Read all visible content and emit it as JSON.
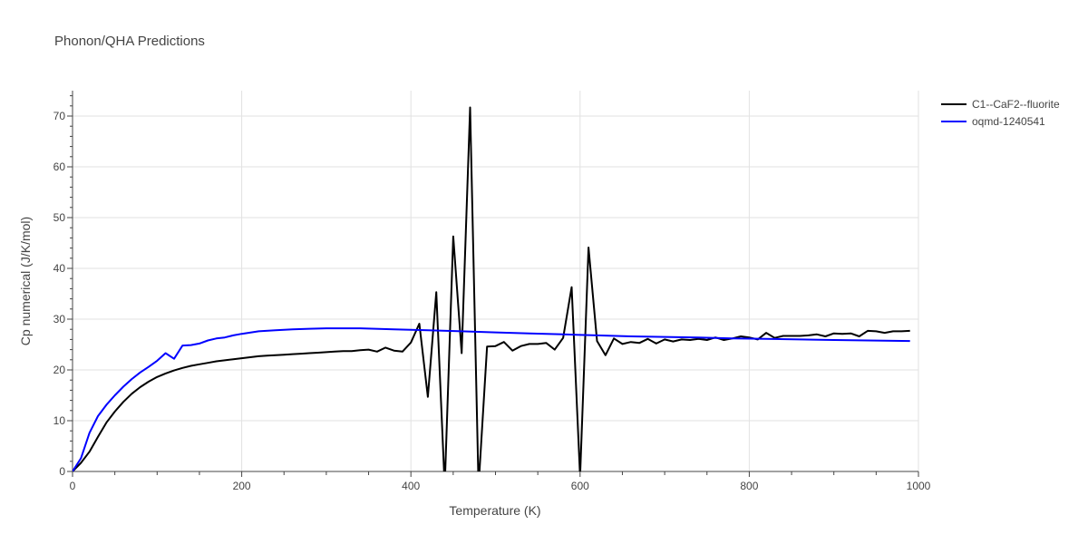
{
  "chart_data": {
    "type": "line",
    "title": "Phonon/QHA Predictions",
    "xlabel": "Temperature (K)",
    "ylabel": "Cp numerical (J/K/mol)",
    "xlim": [
      0,
      1000
    ],
    "ylim": [
      0,
      75
    ],
    "xticks": [
      0,
      200,
      400,
      600,
      800,
      1000
    ],
    "yticks": [
      0,
      10,
      20,
      30,
      40,
      50,
      60,
      70
    ],
    "grid": true,
    "legend_position": "top-right",
    "series": [
      {
        "name": "C1--CaF2--fluorite",
        "color": "#000000",
        "points": [
          [
            0,
            0
          ],
          [
            10,
            1.7
          ],
          [
            20,
            3.9
          ],
          [
            30,
            6.8
          ],
          [
            40,
            9.6
          ],
          [
            50,
            11.8
          ],
          [
            60,
            13.7
          ],
          [
            70,
            15.3
          ],
          [
            80,
            16.6
          ],
          [
            90,
            17.7
          ],
          [
            100,
            18.6
          ],
          [
            110,
            19.3
          ],
          [
            120,
            19.9
          ],
          [
            130,
            20.4
          ],
          [
            140,
            20.8
          ],
          [
            150,
            21.1
          ],
          [
            160,
            21.4
          ],
          [
            170,
            21.7
          ],
          [
            180,
            21.9
          ],
          [
            190,
            22.1
          ],
          [
            200,
            22.3
          ],
          [
            210,
            22.5
          ],
          [
            220,
            22.7
          ],
          [
            230,
            22.8
          ],
          [
            240,
            22.9
          ],
          [
            250,
            23.0
          ],
          [
            260,
            23.1
          ],
          [
            270,
            23.2
          ],
          [
            280,
            23.3
          ],
          [
            290,
            23.4
          ],
          [
            300,
            23.5
          ],
          [
            310,
            23.6
          ],
          [
            320,
            23.7
          ],
          [
            330,
            23.7
          ],
          [
            340,
            23.9
          ],
          [
            350,
            24.0
          ],
          [
            360,
            23.6
          ],
          [
            370,
            24.4
          ],
          [
            380,
            23.8
          ],
          [
            390,
            23.6
          ],
          [
            400,
            25.4
          ],
          [
            410,
            29.1
          ],
          [
            420,
            14.7
          ],
          [
            430,
            35.3
          ],
          [
            440,
            -3.0
          ],
          [
            450,
            46.3
          ],
          [
            460,
            23.3
          ],
          [
            470,
            71.7
          ],
          [
            480,
            -3.0
          ],
          [
            490,
            24.6
          ],
          [
            500,
            24.7
          ],
          [
            510,
            25.5
          ],
          [
            520,
            23.8
          ],
          [
            530,
            24.7
          ],
          [
            540,
            25.1
          ],
          [
            550,
            25.1
          ],
          [
            560,
            25.3
          ],
          [
            570,
            24.0
          ],
          [
            580,
            26.3
          ],
          [
            590,
            36.3
          ],
          [
            600,
            -1.0
          ],
          [
            610,
            44.1
          ],
          [
            620,
            25.7
          ],
          [
            630,
            22.9
          ],
          [
            640,
            26.2
          ],
          [
            650,
            25.1
          ],
          [
            660,
            25.5
          ],
          [
            670,
            25.3
          ],
          [
            680,
            26.1
          ],
          [
            690,
            25.2
          ],
          [
            700,
            26.0
          ],
          [
            710,
            25.6
          ],
          [
            720,
            26.0
          ],
          [
            730,
            25.9
          ],
          [
            740,
            26.1
          ],
          [
            750,
            25.9
          ],
          [
            760,
            26.4
          ],
          [
            770,
            25.9
          ],
          [
            780,
            26.2
          ],
          [
            790,
            26.6
          ],
          [
            800,
            26.4
          ],
          [
            810,
            26.0
          ],
          [
            820,
            27.3
          ],
          [
            830,
            26.3
          ],
          [
            840,
            26.7
          ],
          [
            850,
            26.7
          ],
          [
            860,
            26.7
          ],
          [
            870,
            26.8
          ],
          [
            880,
            27.0
          ],
          [
            890,
            26.6
          ],
          [
            900,
            27.2
          ],
          [
            910,
            27.1
          ],
          [
            920,
            27.2
          ],
          [
            930,
            26.6
          ],
          [
            940,
            27.7
          ],
          [
            950,
            27.6
          ],
          [
            960,
            27.3
          ],
          [
            970,
            27.6
          ],
          [
            980,
            27.6
          ],
          [
            990,
            27.7
          ]
        ]
      },
      {
        "name": "oqmd-1240541",
        "color": "#0000ff",
        "points": [
          [
            0,
            0
          ],
          [
            10,
            2.6
          ],
          [
            20,
            7.6
          ],
          [
            30,
            10.9
          ],
          [
            40,
            13.1
          ],
          [
            50,
            15.0
          ],
          [
            60,
            16.7
          ],
          [
            70,
            18.2
          ],
          [
            80,
            19.5
          ],
          [
            90,
            20.6
          ],
          [
            100,
            21.8
          ],
          [
            110,
            23.3
          ],
          [
            120,
            22.2
          ],
          [
            130,
            24.8
          ],
          [
            140,
            24.9
          ],
          [
            150,
            25.2
          ],
          [
            160,
            25.8
          ],
          [
            170,
            26.2
          ],
          [
            180,
            26.4
          ],
          [
            190,
            26.8
          ],
          [
            200,
            27.1
          ],
          [
            220,
            27.6
          ],
          [
            240,
            27.8
          ],
          [
            260,
            28.0
          ],
          [
            280,
            28.1
          ],
          [
            300,
            28.2
          ],
          [
            340,
            28.2
          ],
          [
            380,
            28.0
          ],
          [
            420,
            27.8
          ],
          [
            460,
            27.6
          ],
          [
            500,
            27.4
          ],
          [
            540,
            27.2
          ],
          [
            580,
            27.0
          ],
          [
            620,
            26.8
          ],
          [
            660,
            26.6
          ],
          [
            700,
            26.5
          ],
          [
            740,
            26.4
          ],
          [
            780,
            26.2
          ],
          [
            820,
            26.1
          ],
          [
            860,
            26.0
          ],
          [
            900,
            25.9
          ],
          [
            940,
            25.8
          ],
          [
            990,
            25.7
          ]
        ]
      }
    ]
  }
}
